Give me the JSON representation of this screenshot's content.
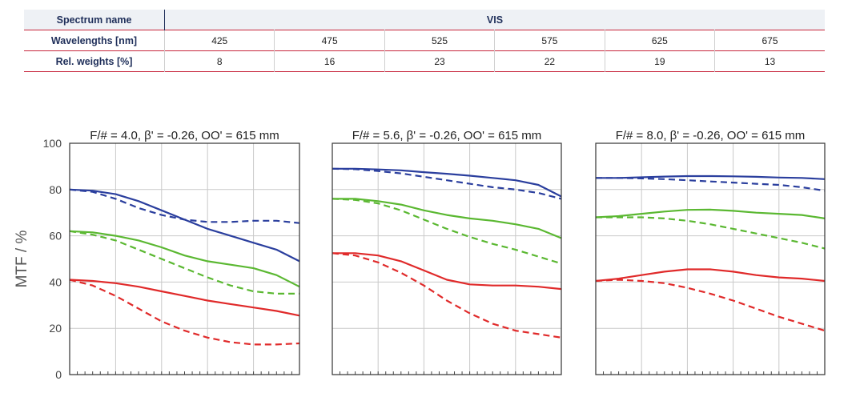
{
  "table": {
    "spectrum_label": "Spectrum name",
    "spectrum_value": "VIS",
    "wavelength_label": "Wavelengths [nm]",
    "weights_label": "Rel. weights [%]",
    "wavelengths": [
      "425",
      "475",
      "525",
      "575",
      "625",
      "675"
    ],
    "weights": [
      "8",
      "16",
      "23",
      "22",
      "19",
      "13"
    ]
  },
  "colors": {
    "blue": "#2b3f9e",
    "green": "#5bb832",
    "red": "#e02a2a",
    "header_text": "#1f2f5a",
    "rule": "#c8273d"
  },
  "chart_data": [
    {
      "type": "line",
      "title": "F/# = 4.0, β' = -0.26, OO' = 615 mm",
      "ylabel": "MTF / %",
      "ylim": [
        0,
        100
      ],
      "yticks": [
        "0",
        "20",
        "40",
        "60",
        "80",
        "100"
      ],
      "xlim": [
        0,
        1
      ],
      "grid": true,
      "series": [
        {
          "color": "#2b3f9e",
          "dash": false,
          "x": [
            0,
            0.1,
            0.2,
            0.3,
            0.4,
            0.5,
            0.6,
            0.7,
            0.8,
            0.9,
            1.0
          ],
          "y": [
            80,
            79.5,
            78,
            75,
            71,
            67,
            63,
            60,
            57,
            54,
            49
          ]
        },
        {
          "color": "#2b3f9e",
          "dash": true,
          "x": [
            0,
            0.1,
            0.2,
            0.3,
            0.4,
            0.5,
            0.6,
            0.7,
            0.8,
            0.9,
            1.0
          ],
          "y": [
            80,
            79,
            76,
            72,
            69,
            67,
            66,
            66,
            66.5,
            66.5,
            65.5
          ]
        },
        {
          "color": "#5bb832",
          "dash": false,
          "x": [
            0,
            0.1,
            0.2,
            0.3,
            0.4,
            0.5,
            0.6,
            0.7,
            0.8,
            0.9,
            1.0
          ],
          "y": [
            62,
            61.5,
            60,
            58,
            55,
            51.5,
            49,
            47.5,
            46,
            43,
            38
          ]
        },
        {
          "color": "#5bb832",
          "dash": true,
          "x": [
            0,
            0.1,
            0.2,
            0.3,
            0.4,
            0.5,
            0.6,
            0.7,
            0.8,
            0.9,
            1.0
          ],
          "y": [
            62,
            60.5,
            58,
            54,
            50,
            46,
            42,
            38.5,
            36,
            35,
            35
          ]
        },
        {
          "color": "#e02a2a",
          "dash": false,
          "x": [
            0,
            0.1,
            0.2,
            0.3,
            0.4,
            0.5,
            0.6,
            0.7,
            0.8,
            0.9,
            1.0
          ],
          "y": [
            41,
            40.5,
            39.5,
            38,
            36,
            34,
            32,
            30.5,
            29,
            27.5,
            25.5
          ]
        },
        {
          "color": "#e02a2a",
          "dash": true,
          "x": [
            0,
            0.1,
            0.2,
            0.3,
            0.4,
            0.5,
            0.6,
            0.7,
            0.8,
            0.9,
            1.0
          ],
          "y": [
            41,
            38.5,
            34,
            28.5,
            23,
            19,
            16,
            14,
            13,
            13,
            13.5
          ]
        }
      ]
    },
    {
      "type": "line",
      "title": "F/# = 5.6, β' = -0.26, OO' = 615 mm",
      "ylim": [
        0,
        100
      ],
      "xlim": [
        0,
        1
      ],
      "grid": true,
      "series": [
        {
          "color": "#2b3f9e",
          "dash": false,
          "x": [
            0,
            0.1,
            0.2,
            0.3,
            0.4,
            0.5,
            0.6,
            0.7,
            0.8,
            0.9,
            1.0
          ],
          "y": [
            89,
            89,
            88.7,
            88.3,
            87.5,
            86.8,
            86,
            85,
            84,
            82,
            77
          ]
        },
        {
          "color": "#2b3f9e",
          "dash": true,
          "x": [
            0,
            0.1,
            0.2,
            0.3,
            0.4,
            0.5,
            0.6,
            0.7,
            0.8,
            0.9,
            1.0
          ],
          "y": [
            89,
            88.8,
            88,
            87,
            85.5,
            84,
            82.5,
            81,
            80,
            78.5,
            76
          ]
        },
        {
          "color": "#5bb832",
          "dash": false,
          "x": [
            0,
            0.1,
            0.2,
            0.3,
            0.4,
            0.5,
            0.6,
            0.7,
            0.8,
            0.9,
            1.0
          ],
          "y": [
            76,
            76,
            75,
            73.5,
            71,
            69,
            67.5,
            66.5,
            65,
            63,
            59
          ]
        },
        {
          "color": "#5bb832",
          "dash": true,
          "x": [
            0,
            0.1,
            0.2,
            0.3,
            0.4,
            0.5,
            0.6,
            0.7,
            0.8,
            0.9,
            1.0
          ],
          "y": [
            76,
            75.5,
            74,
            71,
            67,
            63,
            59.5,
            56.5,
            54,
            51,
            48
          ]
        },
        {
          "color": "#e02a2a",
          "dash": false,
          "x": [
            0,
            0.1,
            0.2,
            0.3,
            0.4,
            0.5,
            0.6,
            0.7,
            0.8,
            0.9,
            1.0
          ],
          "y": [
            52.5,
            52.5,
            51.5,
            49,
            45,
            41,
            39,
            38.5,
            38.5,
            38,
            37
          ]
        },
        {
          "color": "#e02a2a",
          "dash": true,
          "x": [
            0,
            0.1,
            0.2,
            0.3,
            0.4,
            0.5,
            0.6,
            0.7,
            0.8,
            0.9,
            1.0
          ],
          "y": [
            52.5,
            51.5,
            48.5,
            44,
            38.5,
            32,
            26.5,
            22,
            19,
            17.5,
            16
          ]
        }
      ]
    },
    {
      "type": "line",
      "title": "F/# = 8.0, β' = -0.26, OO' = 615 mm",
      "ylim": [
        0,
        100
      ],
      "xlim": [
        0,
        1
      ],
      "grid": true,
      "series": [
        {
          "color": "#2b3f9e",
          "dash": false,
          "x": [
            0,
            0.1,
            0.2,
            0.3,
            0.4,
            0.5,
            0.6,
            0.7,
            0.8,
            0.9,
            1.0
          ],
          "y": [
            85,
            85,
            85.3,
            85.6,
            85.8,
            85.8,
            85.7,
            85.5,
            85.2,
            85,
            84.5
          ]
        },
        {
          "color": "#2b3f9e",
          "dash": true,
          "x": [
            0,
            0.1,
            0.2,
            0.3,
            0.4,
            0.5,
            0.6,
            0.7,
            0.8,
            0.9,
            1.0
          ],
          "y": [
            85,
            85,
            84.8,
            84.5,
            84,
            83.5,
            83,
            82.5,
            82,
            81,
            79.5
          ]
        },
        {
          "color": "#5bb832",
          "dash": false,
          "x": [
            0,
            0.1,
            0.2,
            0.3,
            0.4,
            0.5,
            0.6,
            0.7,
            0.8,
            0.9,
            1.0
          ],
          "y": [
            68,
            68.5,
            69.5,
            70.5,
            71.2,
            71.3,
            70.8,
            70,
            69.5,
            69,
            67.5
          ]
        },
        {
          "color": "#5bb832",
          "dash": true,
          "x": [
            0,
            0.1,
            0.2,
            0.3,
            0.4,
            0.5,
            0.6,
            0.7,
            0.8,
            0.9,
            1.0
          ],
          "y": [
            68,
            68,
            68,
            67.5,
            66.5,
            65,
            63,
            61,
            59,
            57,
            54.5
          ]
        },
        {
          "color": "#e02a2a",
          "dash": false,
          "x": [
            0,
            0.1,
            0.2,
            0.3,
            0.4,
            0.5,
            0.6,
            0.7,
            0.8,
            0.9,
            1.0
          ],
          "y": [
            40.5,
            41.5,
            43,
            44.5,
            45.5,
            45.5,
            44.5,
            43,
            42,
            41.5,
            40.5
          ]
        },
        {
          "color": "#e02a2a",
          "dash": true,
          "x": [
            0,
            0.1,
            0.2,
            0.3,
            0.4,
            0.5,
            0.6,
            0.7,
            0.8,
            0.9,
            1.0
          ],
          "y": [
            40.5,
            41,
            40.5,
            39.5,
            37.5,
            35,
            32,
            28.5,
            25,
            22,
            19
          ]
        }
      ]
    }
  ]
}
